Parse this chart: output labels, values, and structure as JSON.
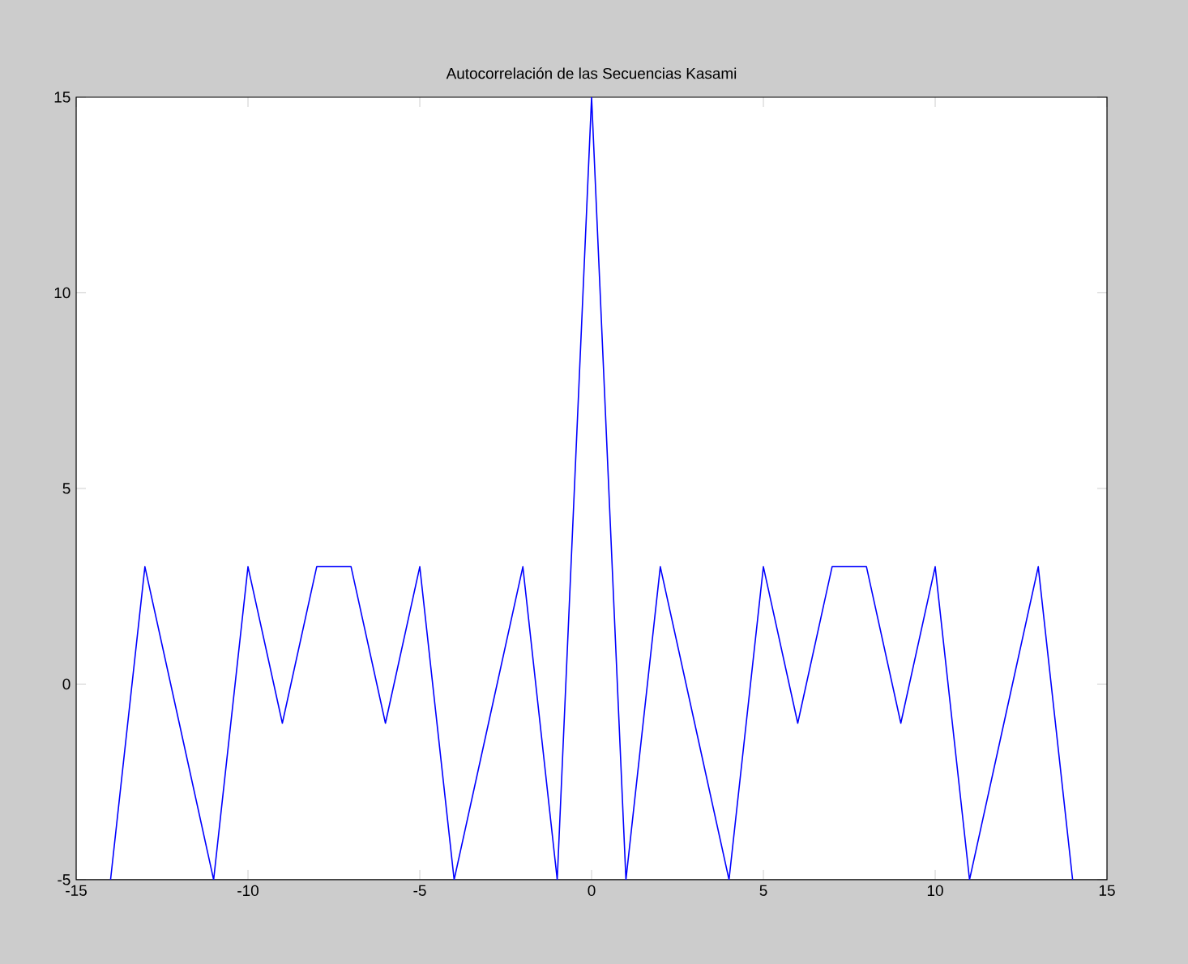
{
  "chart_data": {
    "type": "line",
    "title": "Autocorrelación de las Secuencias Kasami",
    "x": [
      -14,
      -13,
      -12,
      -11,
      -10,
      -9,
      -8,
      -7,
      -6,
      -5,
      -4,
      -3,
      -2,
      -1,
      0,
      1,
      2,
      3,
      4,
      5,
      6,
      7,
      8,
      9,
      10,
      11,
      12,
      13,
      14
    ],
    "values": [
      -5,
      3,
      -1,
      -5,
      3,
      -1,
      3,
      3,
      -1,
      3,
      -5,
      -1,
      3,
      -5,
      15,
      -5,
      3,
      -1,
      -5,
      3,
      -1,
      3,
      3,
      -1,
      3,
      -5,
      -1,
      3,
      -5
    ],
    "color": "#0000ff",
    "xlim": [
      -15,
      15
    ],
    "ylim": [
      -5,
      15
    ],
    "xticks": [
      -15,
      -10,
      -5,
      0,
      5,
      10,
      15
    ],
    "yticks": [
      -5,
      0,
      5,
      10,
      15
    ]
  }
}
